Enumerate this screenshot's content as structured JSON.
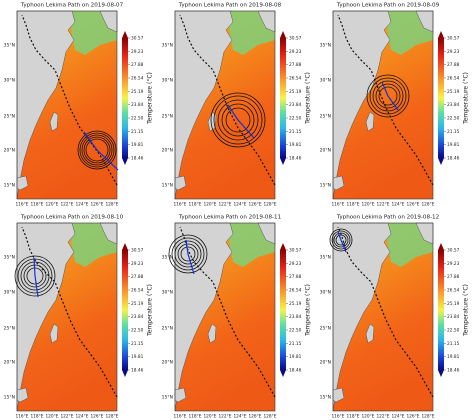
{
  "panels": [
    {
      "title": "Typhoon Lekima Path on 2019-08-07"
    },
    {
      "title": "Typhoon Lekima Path on 2019-08-08"
    },
    {
      "title": "Typhoon Lekima Path on 2019-08-09"
    },
    {
      "title": "Typhoon Lekima Path on 2019-08-10"
    },
    {
      "title": "Typhoon Lekima Path on 2019-08-11"
    },
    {
      "title": "Typhoon Lekima Path on 2019-08-12"
    }
  ],
  "lat_labels": [
    "35°N",
    "30°N",
    "25°N",
    "20°N",
    "15°N"
  ],
  "lon_labels": [
    "116°E",
    "118°E",
    "120°E",
    "122°E",
    "124°E",
    "126°E",
    "128°E"
  ],
  "colorbar": {
    "label": "Temperature (°C)",
    "ticks": [
      "30.57",
      "29.23",
      "27.88",
      "26.54",
      "25.19",
      "23.84",
      "22.50",
      "21.15",
      "19.81",
      "18.46"
    ]
  }
}
